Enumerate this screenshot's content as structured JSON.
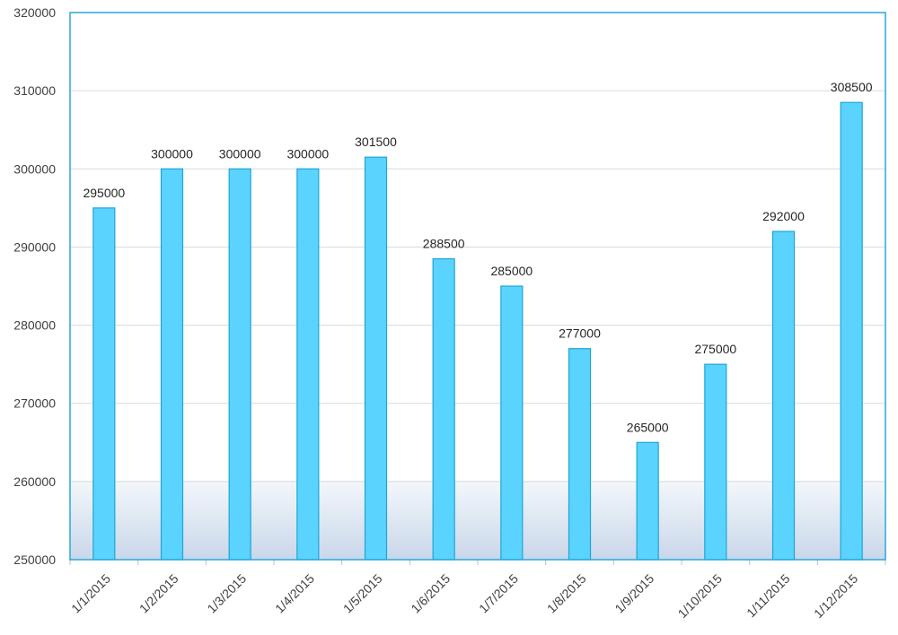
{
  "chart_data": {
    "type": "bar",
    "title": "",
    "xlabel": "",
    "ylabel": "",
    "categories": [
      "1/1/2015",
      "1/2/2015",
      "1/3/2015",
      "1/4/2015",
      "1/5/2015",
      "1/6/2015",
      "1/7/2015",
      "1/8/2015",
      "1/9/2015",
      "1/10/2015",
      "1/11/2015",
      "1/12/2015"
    ],
    "values": [
      295000,
      300000,
      300000,
      300000,
      301500,
      288500,
      285000,
      277000,
      265000,
      275000,
      292000,
      308500
    ],
    "ylim": [
      250000,
      320000
    ],
    "yticks": [
      250000,
      260000,
      270000,
      280000,
      290000,
      300000,
      310000,
      320000
    ],
    "grid": true,
    "legend": "none",
    "colors": {
      "bar_fill": "#5bd3ff",
      "bar_stroke": "#1ea5d6",
      "frame": "#26a9d8",
      "grid": "#d9d9d9",
      "band_top": "#f4f7fb",
      "band_bottom": "#c9d7ea"
    }
  }
}
